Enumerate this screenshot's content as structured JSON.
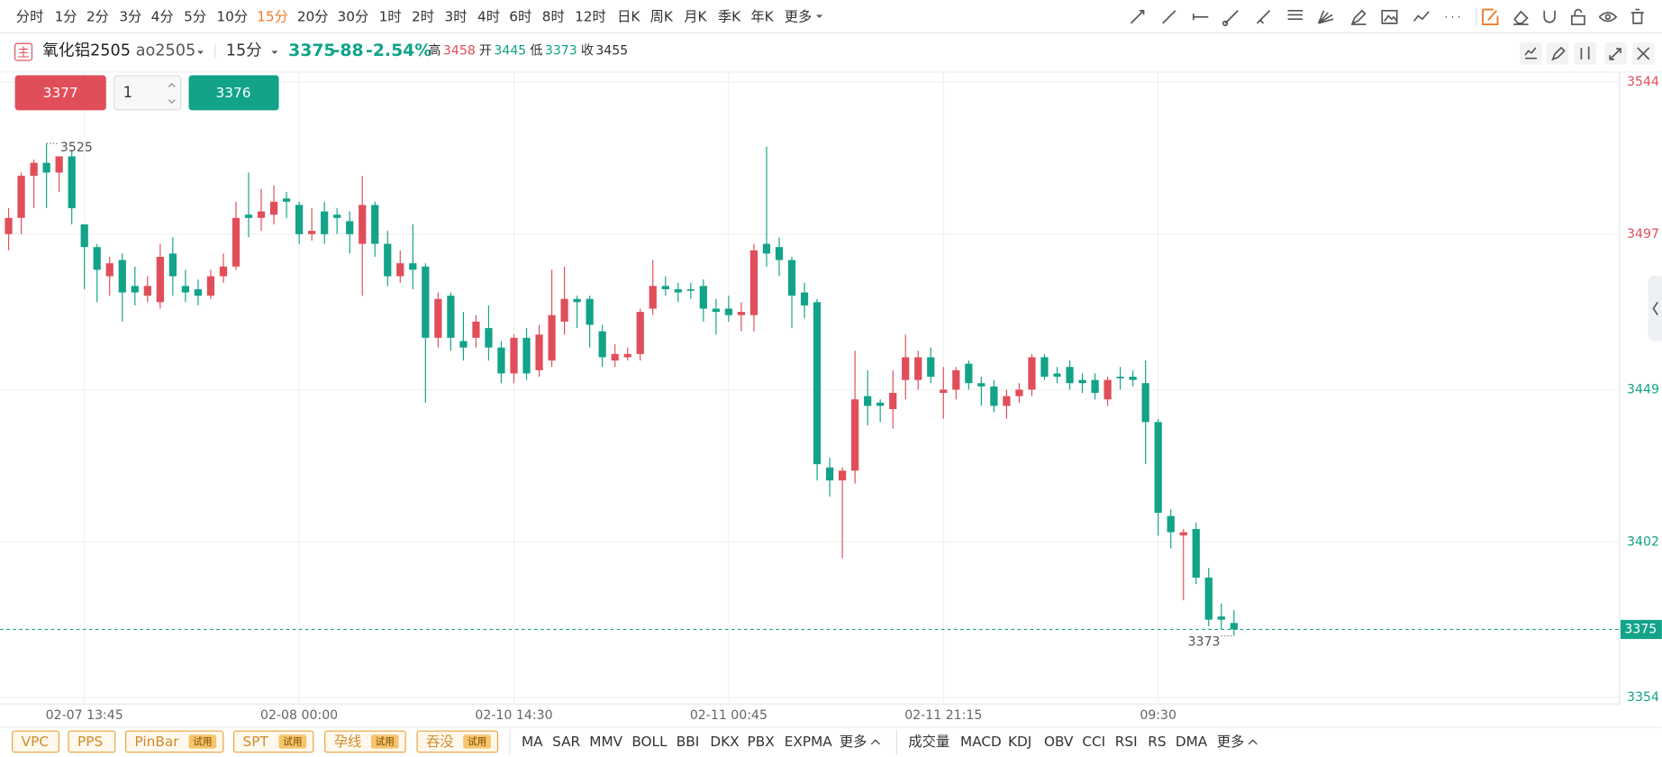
{
  "toolbar": {
    "periods": [
      "分时",
      "1分",
      "2分",
      "3分",
      "4分",
      "5分",
      "10分",
      "15分",
      "20分",
      "30分",
      "1时",
      "2时",
      "3时",
      "4时",
      "6时",
      "8时",
      "12时",
      "日K",
      "周K",
      "月K",
      "季K",
      "年K",
      "更多"
    ],
    "active": 7
  },
  "header": {
    "symbol_icon": "主",
    "name": "氧化铝2505",
    "code": "ao2505",
    "period": "15分",
    "last": 3375,
    "change": -88,
    "change_pct": "-2.54%",
    "high_label": "高",
    "high": 3458,
    "open_label": "开",
    "open": 3445,
    "low_label": "低",
    "low": 3373,
    "close_label": "收",
    "close": 3455
  },
  "order": {
    "sell": 3377,
    "qty": 1,
    "buy": 3376
  },
  "chart_data": {
    "type": "candlestick",
    "categories": [
      null,
      null,
      null,
      null,
      null,
      null,
      "02-07 13:45",
      null,
      null,
      null,
      null,
      null,
      null,
      null,
      null,
      null,
      null,
      null,
      null,
      null,
      null,
      null,
      null,
      "02-08 00:00",
      null,
      null,
      null,
      null,
      null,
      null,
      null,
      null,
      null,
      null,
      null,
      null,
      null,
      null,
      null,
      null,
      "02-10 14:30",
      null,
      null,
      null,
      null,
      null,
      null,
      null,
      null,
      null,
      null,
      null,
      null,
      null,
      null,
      null,
      null,
      "02-11 00:45",
      null,
      null,
      null,
      null,
      null,
      null,
      null,
      null,
      null,
      null,
      null,
      null,
      null,
      null,
      null,
      null,
      "02-11 21:15",
      null,
      null,
      null,
      null,
      null,
      null,
      null,
      null,
      null,
      null,
      null,
      null,
      null,
      null,
      null,
      null,
      "09:30",
      null,
      null,
      null,
      null,
      null,
      null
    ],
    "open": [
      3497,
      3502,
      3515,
      3519,
      3516,
      3521,
      3500,
      3493,
      3484,
      3489,
      3481,
      3478,
      3476,
      3491,
      3481,
      3480,
      3478,
      3484,
      3487,
      3503,
      3502,
      3503,
      3508,
      3506,
      3497,
      3504,
      3503,
      3501,
      3494,
      3506,
      3494,
      3484,
      3488,
      3487,
      3465,
      3478,
      3464,
      3465,
      3468,
      3462,
      3454,
      3465,
      3455,
      3458,
      3470,
      3477,
      3477,
      3467,
      3458,
      3459,
      3460,
      3474,
      3481,
      3480,
      3480,
      3481,
      3474,
      3474,
      3472,
      3472,
      3494,
      3493,
      3489,
      3479,
      3476,
      3425,
      3421,
      3424,
      3447,
      3445,
      3443,
      3452,
      3452,
      3459,
      3448,
      3449,
      3457,
      3451,
      3450,
      3444,
      3447,
      3449,
      3459,
      3454,
      3456,
      3452,
      3452,
      3446,
      3453,
      3453,
      3451,
      3439,
      3410,
      3404,
      3406,
      3391,
      3379,
      3377
    ],
    "high": [
      3505,
      3516,
      3520,
      3525,
      3521,
      3523,
      3500,
      3494,
      3490,
      3491,
      3487,
      3484,
      3494,
      3496,
      3486,
      3483,
      3486,
      3491,
      3507,
      3516,
      3511,
      3512,
      3510,
      3507,
      3505,
      3507,
      3505,
      3504,
      3515,
      3507,
      3498,
      3492,
      3500,
      3488,
      3479,
      3479,
      3473,
      3472,
      3475,
      3464,
      3466,
      3468,
      3469,
      3486,
      3487,
      3478,
      3478,
      3469,
      3463,
      3462,
      3474,
      3489,
      3484,
      3482,
      3482,
      3483,
      3477,
      3478,
      3476,
      3494,
      3524,
      3496,
      3490,
      3482,
      3477,
      3428,
      3425,
      3461,
      3455,
      3446,
      3455,
      3466,
      3461,
      3462,
      3456,
      3456,
      3458,
      3453,
      3452,
      3449,
      3451,
      3460,
      3460,
      3456,
      3458,
      3454,
      3454,
      3453,
      3456,
      3455,
      3458,
      3440,
      3412,
      3406,
      3408,
      3394,
      3383,
      3381
    ],
    "low": [
      3492,
      3497,
      3505,
      3505,
      3510,
      3500,
      3480,
      3476,
      3478,
      3470,
      3475,
      3476,
      3474,
      3478,
      3476,
      3475,
      3477,
      3482,
      3486,
      3496,
      3498,
      3500,
      3502,
      3494,
      3495,
      3494,
      3497,
      3491,
      3478,
      3490,
      3481,
      3482,
      3480,
      3445,
      3462,
      3461,
      3458,
      3462,
      3458,
      3451,
      3451,
      3452,
      3453,
      3456,
      3466,
      3468,
      3462,
      3456,
      3456,
      3458,
      3458,
      3472,
      3478,
      3476,
      3477,
      3470,
      3466,
      3470,
      3467,
      3467,
      3487,
      3484,
      3468,
      3471,
      3421,
      3416,
      3397,
      3420,
      3438,
      3439,
      3437,
      3446,
      3449,
      3451,
      3440,
      3446,
      3449,
      3444,
      3442,
      3440,
      3445,
      3447,
      3452,
      3451,
      3449,
      3448,
      3446,
      3444,
      3449,
      3450,
      3426,
      3404,
      3400,
      3384,
      3389,
      3376,
      3375,
      3373
    ],
    "close": [
      3502,
      3515,
      3519,
      3516,
      3521,
      3505,
      3493,
      3486,
      3488,
      3479,
      3479,
      3481,
      3490,
      3484,
      3479,
      3478,
      3484,
      3487,
      3502,
      3502,
      3504,
      3507,
      3507,
      3497,
      3498,
      3497,
      3502,
      3497,
      3506,
      3494,
      3484,
      3488,
      3486,
      3465,
      3477,
      3465,
      3462,
      3470,
      3462,
      3454,
      3465,
      3454,
      3466,
      3472,
      3477,
      3476,
      3469,
      3459,
      3460,
      3460,
      3473,
      3481,
      3480,
      3479,
      3480,
      3474,
      3473,
      3472,
      3473,
      3492,
      3491,
      3489,
      3478,
      3475,
      3426,
      3421,
      3424,
      3446,
      3444,
      3444,
      3448,
      3459,
      3459,
      3453,
      3449,
      3455,
      3451,
      3450,
      3444,
      3447,
      3449,
      3459,
      3453,
      3453,
      3451,
      3451,
      3448,
      3452,
      3453,
      3452,
      3439,
      3411,
      3405,
      3405,
      3391,
      3378,
      3378,
      3375
    ],
    "ylim": [
      3352,
      3547
    ],
    "yticks": [
      3544,
      3497,
      3449,
      3402,
      3354
    ],
    "ytick_colors": [
      "#e04e5a",
      "#e04e5a",
      "#12a389",
      "#12a389",
      "#12a389"
    ],
    "up_color": "#e04e5a",
    "down_color": "#12a389",
    "grid": true,
    "last": 3375,
    "high_marker": 3525,
    "low_marker": 3373
  },
  "footer": {
    "patterns": [
      {
        "name": "VPC"
      },
      {
        "name": "PPS"
      },
      {
        "name": "PinBar",
        "badge": "试用"
      },
      {
        "name": "SPT",
        "badge": "试用"
      },
      {
        "name": "孕线",
        "badge": "试用"
      },
      {
        "name": "吞没",
        "badge": "试用"
      }
    ],
    "main_indicators": [
      "MA",
      "SAR",
      "MMV",
      "BOLL",
      "BBI",
      "DKX",
      "PBX",
      "EXPMA",
      "更多"
    ],
    "sub_indicators": [
      "成交量",
      "MACD",
      "KDJ",
      "OBV",
      "CCI",
      "RSI",
      "RS",
      "DMA",
      "更多"
    ]
  }
}
